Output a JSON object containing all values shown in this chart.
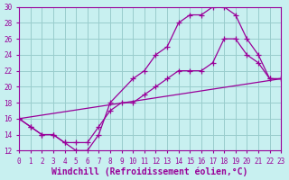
{
  "title": "",
  "xlabel": "Windchill (Refroidissement éolien,°C)",
  "ylabel": "",
  "bg_color": "#c8f0f0",
  "line_color": "#990099",
  "grid_color": "#99cccc",
  "xlim": [
    0,
    23
  ],
  "ylim": [
    12,
    30
  ],
  "xticks": [
    0,
    1,
    2,
    3,
    4,
    5,
    6,
    7,
    8,
    9,
    10,
    11,
    12,
    13,
    14,
    15,
    16,
    17,
    18,
    19,
    20,
    21,
    22,
    23
  ],
  "yticks": [
    12,
    14,
    16,
    18,
    20,
    22,
    24,
    26,
    28,
    30
  ],
  "line1_x": [
    0,
    1,
    2,
    3,
    4,
    5,
    6,
    7,
    8,
    10,
    11,
    12,
    13,
    14,
    15,
    16,
    17,
    18,
    19,
    20,
    21,
    22,
    23
  ],
  "line1_y": [
    16,
    15,
    14,
    14,
    13,
    12,
    12,
    14,
    18,
    21,
    22,
    24,
    25,
    28,
    29,
    29,
    30,
    30,
    29,
    26,
    24,
    21,
    21
  ],
  "line2_x": [
    0,
    1,
    2,
    3,
    4,
    5,
    6,
    7,
    8,
    9,
    10,
    11,
    12,
    13,
    14,
    15,
    16,
    17,
    18,
    19,
    20,
    21,
    22,
    23
  ],
  "line2_y": [
    16,
    15,
    14,
    14,
    13,
    13,
    13,
    15,
    17,
    18,
    18,
    19,
    20,
    21,
    22,
    22,
    22,
    23,
    26,
    26,
    24,
    23,
    21,
    21
  ],
  "line3_x": [
    0,
    23
  ],
  "line3_y": [
    16,
    21
  ],
  "font_family": "monospace",
  "tick_fontsize": 5.5,
  "label_fontsize": 7.0
}
